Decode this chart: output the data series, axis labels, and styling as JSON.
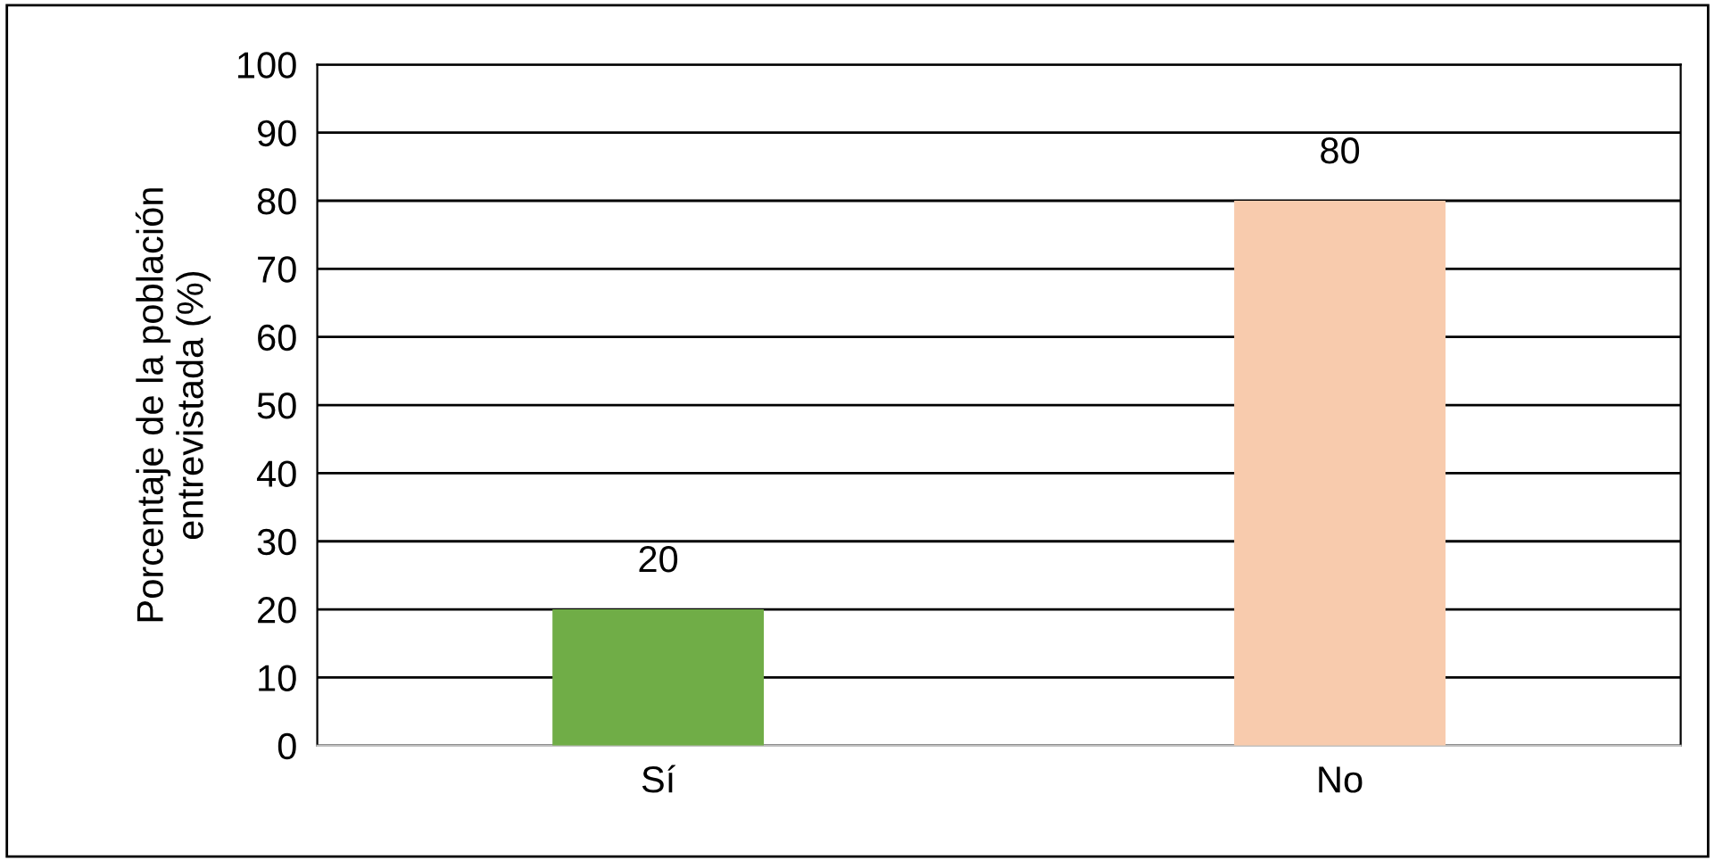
{
  "chart_data": {
    "type": "bar",
    "ylabel": "Porcentaje de la población\nentrevistada (%)",
    "categories": [
      "Sí",
      "No"
    ],
    "values": [
      20,
      80
    ],
    "colors": [
      "#70ad47",
      "#f8cbad"
    ],
    "ylim": [
      0,
      100
    ],
    "yticks": [
      0,
      10,
      20,
      30,
      40,
      50,
      60,
      70,
      80,
      90,
      100
    ],
    "grid": "y",
    "data_labels": true
  }
}
